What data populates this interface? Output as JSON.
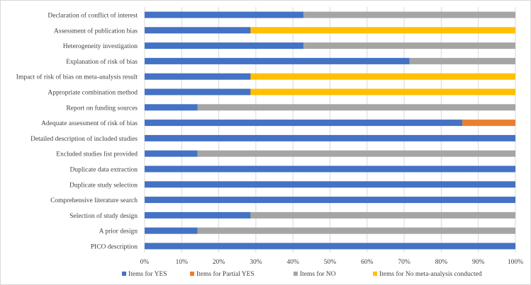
{
  "chart_data": {
    "type": "bar",
    "orientation": "horizontal",
    "stacked": true,
    "title": "",
    "xlabel": "",
    "ylabel": "",
    "xlim": [
      0,
      1
    ],
    "x_ticks": [
      "0%",
      "10%",
      "20%",
      "30%",
      "40%",
      "50%",
      "60%",
      "70%",
      "80%",
      "90%",
      "100%"
    ],
    "grid": true,
    "legend_position": "bottom",
    "categories": [
      "Declaration of conflict of interest",
      "Assessment of publication bias",
      "Heterogeneity investigation",
      "Explanation of risk of bias",
      "Impact of risk of bias on meta-analysis result",
      "Appropriate combination method",
      "Report on funding sources",
      "Adequate assessment of risk of bias",
      "Detailed description of included studies",
      "Excluded studies list provided",
      "Duplicate data extraction",
      "Duplicate study selection",
      "Comprehensive literature search",
      "Selection of study design",
      "A prior design",
      "PICO description"
    ],
    "series": [
      {
        "name": "Items for YES",
        "color": "#4472c4",
        "values": [
          0.4286,
          0.2857,
          0.4286,
          0.7143,
          0.2857,
          0.2857,
          0.1429,
          0.8571,
          1,
          0.1429,
          1,
          1,
          1,
          0.2857,
          0.1429,
          1
        ]
      },
      {
        "name": "Items for Partial YES",
        "color": "#ed7d31",
        "values": [
          0,
          0,
          0,
          0,
          0,
          0,
          0,
          0.1429,
          0,
          0,
          0,
          0,
          0,
          0,
          0,
          0
        ]
      },
      {
        "name": "Items for NO",
        "color": "#a5a5a5",
        "values": [
          0.5714,
          0,
          0.5714,
          0.2857,
          0,
          0,
          0.8571,
          0,
          0,
          0.8571,
          0,
          0,
          0,
          0.7143,
          0.8571,
          0
        ]
      },
      {
        "name": "Items for No meta-analysis conducted",
        "color": "#ffc000",
        "values": [
          0,
          0.7143,
          0,
          0,
          0.7143,
          0.7143,
          0,
          0,
          0,
          0,
          0,
          0,
          0,
          0,
          0,
          0
        ]
      }
    ]
  }
}
